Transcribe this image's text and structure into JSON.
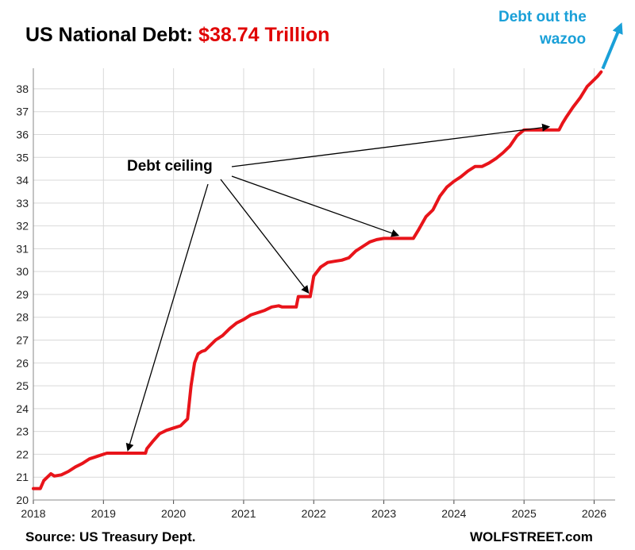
{
  "chart_data": {
    "type": "line",
    "title_prefix": "US National Debt: ",
    "title_value": "$38.74 Trillion",
    "title_color": "#000000",
    "value_color": "#e00000",
    "line_color": "#e8141a",
    "annotation_color": "#1aa0d8",
    "xlabel": "",
    "ylabel": "",
    "xlim": [
      2018.0,
      2026.3
    ],
    "ylim": [
      20,
      38.9
    ],
    "x_ticks": [
      2018,
      2019,
      2020,
      2021,
      2022,
      2023,
      2024,
      2025,
      2026
    ],
    "y_ticks": [
      20,
      21,
      22,
      23,
      24,
      25,
      26,
      27,
      28,
      29,
      30,
      31,
      32,
      33,
      34,
      35,
      36,
      37,
      38
    ],
    "grid": true,
    "series": [
      {
        "name": "US National Debt (trillion $)",
        "x": [
          2018.0,
          2018.1,
          2018.15,
          2018.25,
          2018.3,
          2018.4,
          2018.5,
          2018.6,
          2018.7,
          2018.8,
          2018.9,
          2019.0,
          2019.05,
          2019.1,
          2019.2,
          2019.45,
          2019.6,
          2019.62,
          2019.7,
          2019.8,
          2019.9,
          2020.0,
          2020.1,
          2020.15,
          2020.2,
          2020.25,
          2020.3,
          2020.35,
          2020.4,
          2020.45,
          2020.5,
          2020.6,
          2020.7,
          2020.8,
          2020.9,
          2021.0,
          2021.1,
          2021.2,
          2021.3,
          2021.4,
          2021.5,
          2021.55,
          2021.65,
          2021.75,
          2021.78,
          2021.9,
          2021.95,
          2022.0,
          2022.1,
          2022.2,
          2022.3,
          2022.4,
          2022.5,
          2022.6,
          2022.7,
          2022.8,
          2022.9,
          2023.0,
          2023.05,
          2023.42,
          2023.5,
          2023.6,
          2023.7,
          2023.8,
          2023.9,
          2024.0,
          2024.1,
          2024.2,
          2024.3,
          2024.4,
          2024.5,
          2024.6,
          2024.7,
          2024.8,
          2024.9,
          2025.0,
          2025.05,
          2025.5,
          2025.55,
          2025.6,
          2025.7,
          2025.8,
          2025.9,
          2026.0,
          2026.05,
          2026.1
        ],
        "values": [
          20.5,
          20.5,
          20.85,
          21.15,
          21.05,
          21.1,
          21.25,
          21.45,
          21.6,
          21.8,
          21.9,
          22.0,
          22.05,
          22.05,
          22.05,
          22.05,
          22.05,
          22.25,
          22.55,
          22.9,
          23.05,
          23.15,
          23.25,
          23.4,
          23.55,
          25.0,
          26.0,
          26.4,
          26.5,
          26.55,
          26.7,
          27.0,
          27.2,
          27.5,
          27.75,
          27.9,
          28.1,
          28.2,
          28.3,
          28.45,
          28.5,
          28.45,
          28.45,
          28.45,
          28.9,
          28.9,
          28.9,
          29.8,
          30.2,
          30.4,
          30.45,
          30.5,
          30.6,
          30.9,
          31.1,
          31.3,
          31.4,
          31.45,
          31.45,
          31.45,
          31.85,
          32.4,
          32.7,
          33.3,
          33.7,
          33.95,
          34.15,
          34.4,
          34.6,
          34.6,
          34.75,
          34.95,
          35.2,
          35.5,
          35.95,
          36.2,
          36.2,
          36.2,
          36.5,
          36.75,
          37.2,
          37.6,
          38.1,
          38.4,
          38.55,
          38.74
        ]
      }
    ],
    "annotations": {
      "debt_ceiling": "Debt ceiling",
      "wazoo_line1": "Debt out the",
      "wazoo_line2": "wazoo"
    },
    "footer": {
      "source": "Source: US Treasury Dept.",
      "brand": "WOLFSTREET.com"
    }
  }
}
